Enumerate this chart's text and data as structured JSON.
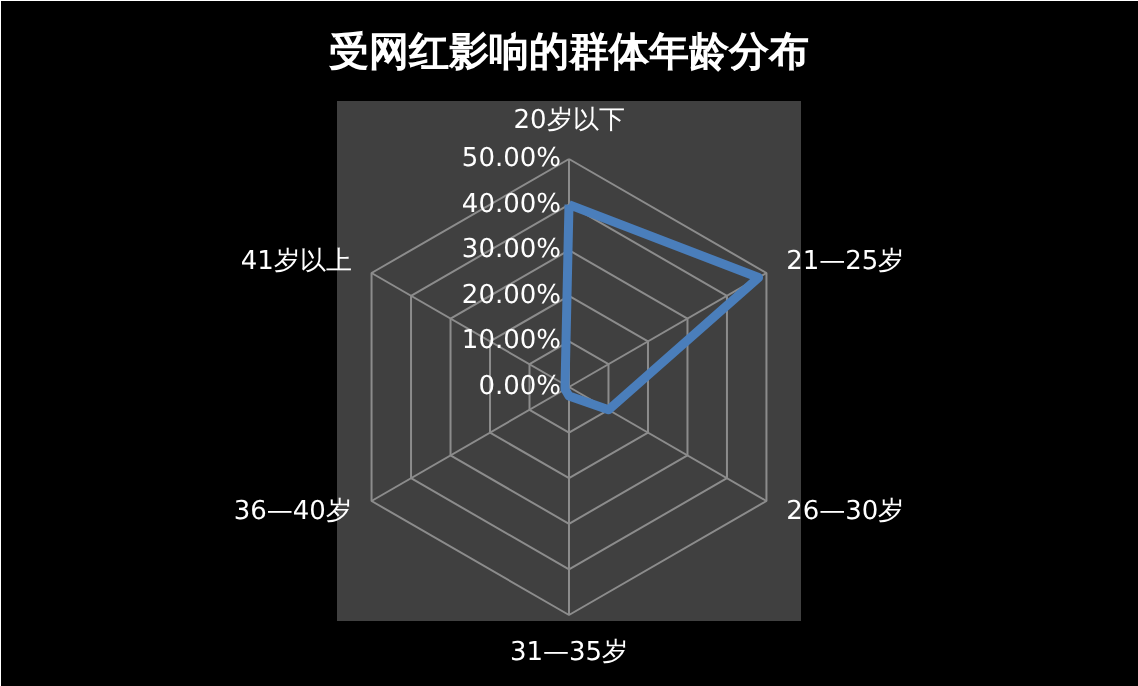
{
  "chart_data": {
    "type": "radar",
    "title": "受网红影响的群体年龄分布",
    "categories": [
      "20岁以下",
      "21—25岁",
      "26—30岁",
      "31—35岁",
      "36—40岁",
      "41岁以上"
    ],
    "series": [
      {
        "color": "#4a7ebb",
        "values": [
          40,
          48,
          10,
          2,
          1,
          1
        ]
      }
    ],
    "ylim": [
      0,
      50
    ],
    "yticks": [
      {
        "value": 0,
        "label": "0.00%"
      },
      {
        "value": 10,
        "label": "10.00%"
      },
      {
        "value": 20,
        "label": "20.00%"
      },
      {
        "value": 30,
        "label": "30.00%"
      },
      {
        "value": 40,
        "label": "40.00%"
      },
      {
        "value": 50,
        "label": "50.00%"
      }
    ],
    "grid": true
  }
}
